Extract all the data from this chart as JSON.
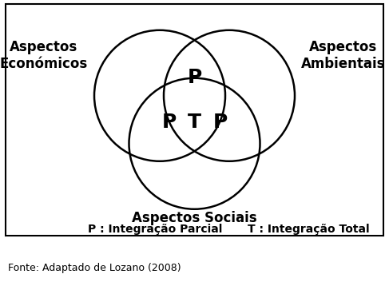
{
  "background_color": "#ffffff",
  "border_color": "#000000",
  "circle_color": "#000000",
  "circle_linewidth": 1.8,
  "label_economicos": "Aspectos\nEconómicos",
  "label_ambientais": "Aspectos\nAmbientais",
  "label_sociais": "Aspectos Sociais",
  "label_fontsize": 12,
  "label_fontweight": "bold",
  "p_top_text": "P",
  "p_left_text": "P",
  "t_center_text": "T",
  "p_right_text": "P",
  "venn_label_fontsize": 18,
  "venn_label_fontweight": "bold",
  "legend_p_text": "P : Integração Parcial",
  "legend_t_text": "T : Integração Total",
  "legend_fontsize": 10,
  "legend_fontweight": "bold",
  "fonte_text": "Fonte: Adaptado de Lozano (2008)",
  "fonte_fontsize": 9
}
